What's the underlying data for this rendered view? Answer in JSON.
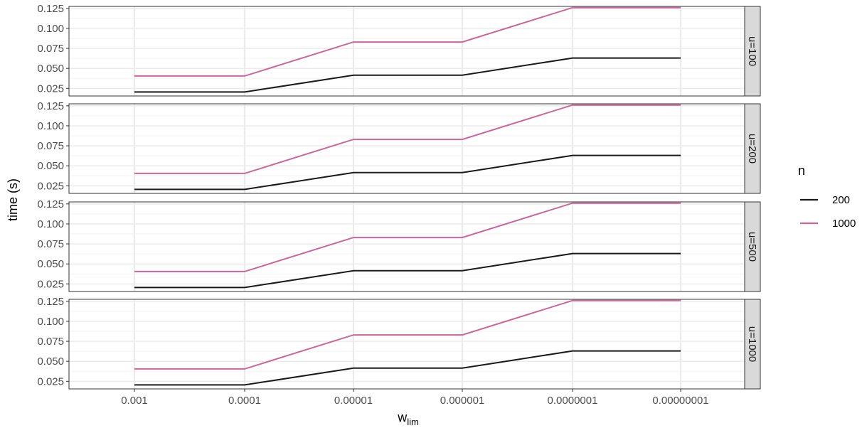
{
  "chart_data": {
    "type": "line",
    "facet_variable": "u",
    "facets": [
      {
        "label": "u=100"
      },
      {
        "label": "u=200"
      },
      {
        "label": "u=500"
      },
      {
        "label": "u=1000"
      }
    ],
    "categories": [
      "0.001",
      "0.0001",
      "0.00001",
      "0.000001",
      "0.0000001",
      "0.00000001"
    ],
    "series": [
      {
        "name": "200",
        "color": "#1a1a1a",
        "values": [
          0.0205,
          0.0205,
          0.0415,
          0.0415,
          0.063,
          0.063
        ]
      },
      {
        "name": "1000",
        "color": "#cc6699",
        "values": [
          0.0405,
          0.0405,
          0.083,
          0.083,
          0.126,
          0.126
        ]
      }
    ],
    "xlabel": "w",
    "xlabel_subscript": "lim",
    "ylabel": "time (s)",
    "ylim": [
      0.0155,
      0.1275
    ],
    "yticks": [
      0.025,
      0.05,
      0.075,
      0.1,
      0.125
    ],
    "ytick_labels": [
      "0.025",
      "0.050",
      "0.075",
      "0.100",
      "0.125"
    ],
    "grid": true,
    "legend": {
      "title": "n",
      "position": "right",
      "entries": [
        "200",
        "1000"
      ]
    }
  }
}
